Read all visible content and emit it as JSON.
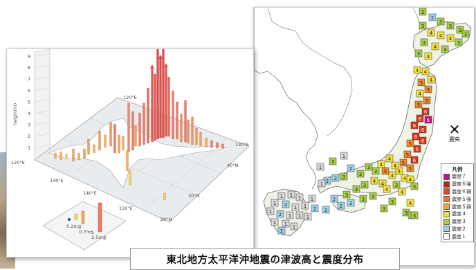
{
  "caption": "東北地方太平洋沖地震の津波高と震度分布",
  "chart": {
    "y_axis_label": "height(m)",
    "y_ticks": [
      "1",
      "2",
      "3",
      "4",
      "5",
      "6",
      "7",
      "8",
      "9"
    ],
    "lon_labels_far": [
      "120°E",
      "130°E"
    ],
    "lon_labels_near": [
      "130°E",
      "140°E",
      "150°E"
    ],
    "far_left_label": "120°E",
    "lat_labels": [
      "40°N",
      "30°N",
      "20°N"
    ],
    "legend_heights": [
      "0.2m≦",
      "0.7m≦",
      "2.5m≦"
    ]
  },
  "map": {
    "epicenter_label": "震央",
    "legend": {
      "title": "凡例",
      "items": [
        {
          "label": "震度７",
          "color": "#c0138b"
        },
        {
          "label": "震度６強",
          "color": "#c81e0e"
        },
        {
          "label": "震度６弱",
          "color": "#e24a1a"
        },
        {
          "label": "震度５強",
          "color": "#ef7a1e"
        },
        {
          "label": "震度５弱",
          "color": "#f2a23a"
        },
        {
          "label": "震度４",
          "color": "#f5e13c"
        },
        {
          "label": "震度３",
          "color": "#a8cf45"
        },
        {
          "label": "震度２",
          "color": "#9fd2ea"
        },
        {
          "label": "震度１",
          "color": "#ffffff"
        }
      ]
    }
  }
}
